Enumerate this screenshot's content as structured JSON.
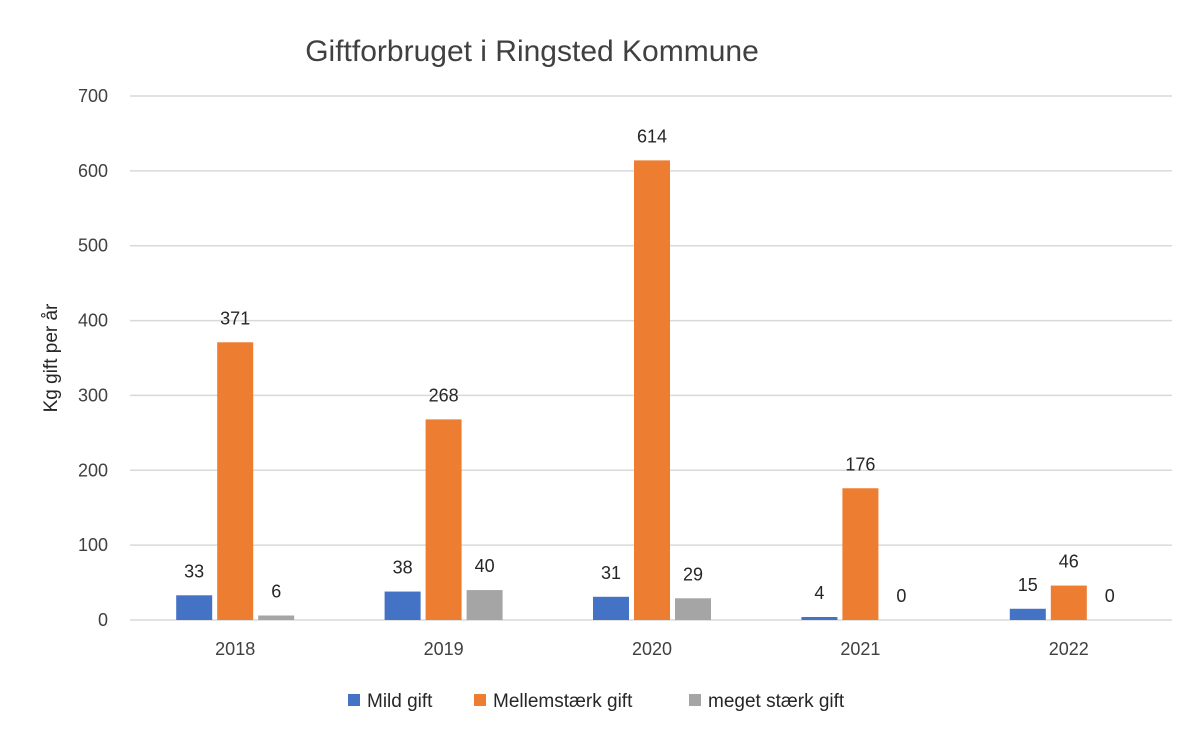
{
  "chart_data": {
    "type": "bar",
    "title": "Giftforbruget i Ringsted Kommune",
    "xlabel": "",
    "ylabel": "Kg gift per år",
    "ylim": [
      0,
      700
    ],
    "yticks": [
      0,
      100,
      200,
      300,
      400,
      500,
      600,
      700
    ],
    "ytick_labels": [
      "0",
      "100",
      "200",
      "300",
      "400",
      "500",
      "600",
      "700"
    ],
    "grid": true,
    "legend_position": "bottom",
    "categories": [
      "2018",
      "2019",
      "2020",
      "2021",
      "2022"
    ],
    "series": [
      {
        "name": "Mild gift",
        "color": "#4472c4",
        "values": [
          33,
          38,
          31,
          4,
          15
        ],
        "labels": [
          "33",
          "38",
          "31",
          "4",
          "15"
        ]
      },
      {
        "name": "Mellemstærk gift",
        "color": "#ed7d31",
        "values": [
          371,
          268,
          614,
          176,
          46
        ],
        "labels": [
          "371",
          "268",
          "614",
          "176",
          "46"
        ]
      },
      {
        "name": "meget stærk gift",
        "color": "#a5a5a5",
        "values": [
          6,
          40,
          29,
          0,
          0
        ],
        "labels": [
          "6",
          "40",
          "29",
          "0",
          "0"
        ]
      }
    ]
  }
}
